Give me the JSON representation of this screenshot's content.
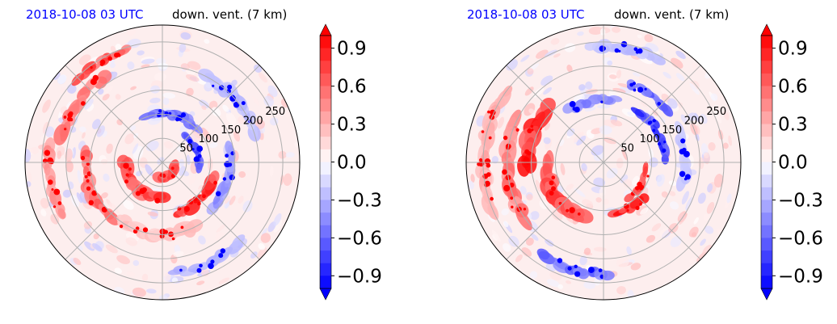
{
  "chart_data": [
    {
      "type": "heatmap",
      "projection": "polar",
      "title_left": "2018-10-08 03 UTC",
      "title_right": "down. vent. (7 km)",
      "radial_ticks": [
        50,
        100,
        150,
        200,
        250
      ],
      "radial_max": 285,
      "angular_grid_deg": [
        0,
        45,
        90,
        135,
        180,
        225,
        270,
        315
      ],
      "grid": true,
      "colormap": "bwr",
      "colorbar": {
        "range": [
          -1.0,
          1.0
        ],
        "ticks": [
          "0.9",
          "0.6",
          "0.3",
          "0.0",
          "−0.3",
          "−0.6",
          "−0.9"
        ],
        "tick_values": [
          0.9,
          0.6,
          0.3,
          0.0,
          -0.3,
          -0.6,
          -0.9
        ],
        "extend": "both",
        "levels": 20
      },
      "features": [
        {
          "r": 30,
          "theta": 300,
          "len": 35,
          "w": 18,
          "v": 1.0
        },
        {
          "r": 75,
          "theta": 225,
          "len": 80,
          "w": 22,
          "v": 0.9
        },
        {
          "r": 110,
          "theta": 315,
          "len": 70,
          "w": 18,
          "v": 1.0
        },
        {
          "r": 160,
          "theta": 200,
          "len": 90,
          "w": 20,
          "v": 0.7
        },
        {
          "r": 215,
          "theta": 145,
          "len": 90,
          "w": 22,
          "v": 0.6
        },
        {
          "r": 235,
          "theta": 190,
          "len": 90,
          "w": 18,
          "v": 0.5
        },
        {
          "r": 150,
          "theta": 265,
          "len": 100,
          "w": 22,
          "v": 0.3
        },
        {
          "r": 245,
          "theta": 120,
          "len": 70,
          "w": 16,
          "v": 0.8
        },
        {
          "r": 100,
          "theta": 75,
          "len": 70,
          "w": 18,
          "v": -0.7
        },
        {
          "r": 75,
          "theta": 20,
          "len": 50,
          "w": 15,
          "v": -0.8
        },
        {
          "r": 140,
          "theta": 345,
          "len": 80,
          "w": 18,
          "v": -0.5
        },
        {
          "r": 200,
          "theta": 40,
          "len": 90,
          "w": 20,
          "v": -0.3
        },
        {
          "r": 230,
          "theta": 295,
          "len": 80,
          "w": 18,
          "v": -0.35
        }
      ]
    },
    {
      "type": "heatmap",
      "projection": "polar",
      "title_left": "2018-10-08 03 UTC",
      "title_right": "down. vent. (7 km)",
      "radial_ticks": [
        50,
        100,
        150,
        200,
        250
      ],
      "radial_max": 285,
      "angular_grid_deg": [
        0,
        45,
        90,
        135,
        180,
        225,
        270,
        315
      ],
      "grid": true,
      "colormap": "bwr",
      "colorbar": {
        "range": [
          -1.0,
          1.0
        ],
        "ticks": [
          "0.9",
          "0.6",
          "0.3",
          "0.0",
          "−0.3",
          "−0.6",
          "−0.9"
        ],
        "tick_values": [
          0.9,
          0.6,
          0.3,
          0.0,
          -0.3,
          -0.6,
          -0.9
        ],
        "extend": "both",
        "levels": 20
      },
      "features": [
        {
          "r": 160,
          "theta": 160,
          "len": 80,
          "w": 28,
          "v": 1.0
        },
        {
          "r": 120,
          "theta": 215,
          "len": 90,
          "w": 26,
          "v": 0.9
        },
        {
          "r": 200,
          "theta": 185,
          "len": 120,
          "w": 24,
          "v": 0.6
        },
        {
          "r": 250,
          "theta": 175,
          "len": 150,
          "w": 22,
          "v": 0.4
        },
        {
          "r": 110,
          "theta": 300,
          "len": 40,
          "w": 16,
          "v": 1.0
        },
        {
          "r": 90,
          "theta": 330,
          "len": 45,
          "w": 14,
          "v": 0.8
        },
        {
          "r": 130,
          "theta": 30,
          "len": 70,
          "w": 16,
          "v": -0.9
        },
        {
          "r": 170,
          "theta": 55,
          "len": 60,
          "w": 16,
          "v": -0.7
        },
        {
          "r": 130,
          "theta": 100,
          "len": 60,
          "w": 16,
          "v": -0.6
        },
        {
          "r": 170,
          "theta": 5,
          "len": 70,
          "w": 18,
          "v": -0.3
        },
        {
          "r": 240,
          "theta": 80,
          "len": 80,
          "w": 18,
          "v": -0.3
        },
        {
          "r": 230,
          "theta": 255,
          "len": 80,
          "w": 18,
          "v": -0.7
        }
      ]
    }
  ]
}
